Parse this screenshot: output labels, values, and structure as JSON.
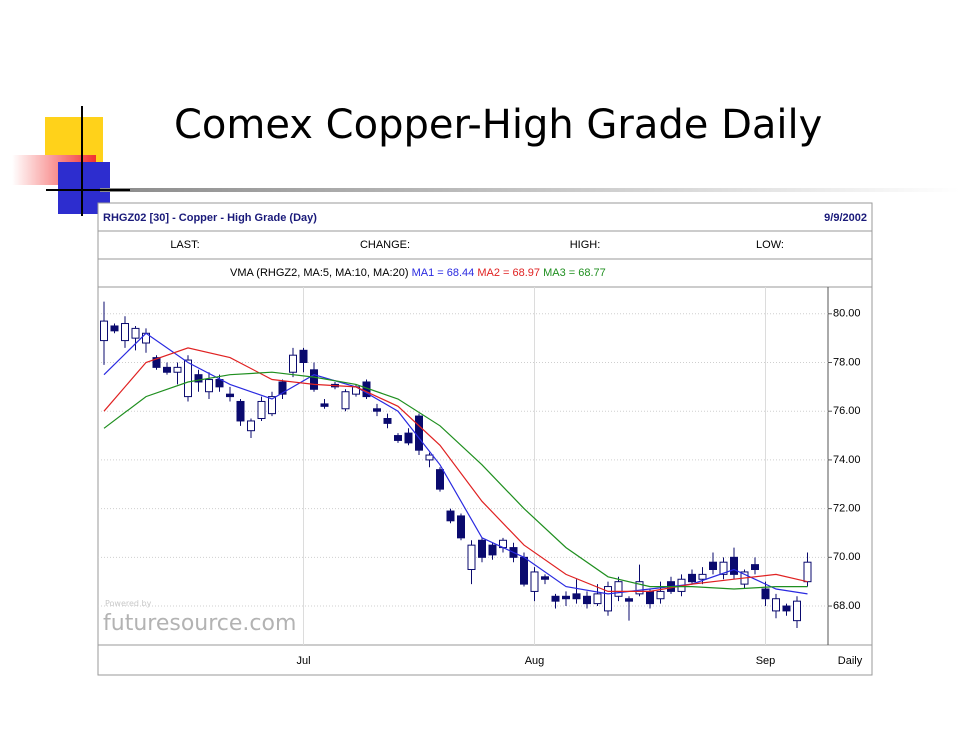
{
  "slide_title": "Comex Copper-High Grade Daily",
  "chart_data": {
    "type": "candlestick",
    "title": "RHGZ02 [30] - Copper - High Grade (Day)",
    "date": "9/9/2002",
    "fields": [
      "LAST:",
      "CHANGE:",
      "HIGH:",
      "LOW:"
    ],
    "ma_label": "VMA (RHGZ2, MA:5, MA:10, MA:20)",
    "watermark": [
      "Powered by",
      "futuresource.com"
    ],
    "x_label": "Daily",
    "up_color": "#ffffff",
    "down_color": "#0a0a6e",
    "edge_color": "#0a0a6e",
    "grid": true,
    "categories": [
      null,
      null,
      null,
      null,
      null,
      null,
      null,
      null,
      null,
      null,
      null,
      null,
      null,
      null,
      null,
      null,
      null,
      null,
      null,
      "Jul",
      null,
      null,
      null,
      null,
      null,
      null,
      null,
      null,
      null,
      null,
      null,
      null,
      null,
      null,
      null,
      null,
      null,
      null,
      null,
      null,
      null,
      "Aug",
      null,
      null,
      null,
      null,
      null,
      null,
      null,
      null,
      null,
      null,
      null,
      null,
      null,
      null,
      null,
      null,
      null,
      null,
      null,
      null,
      null,
      "Sep",
      null,
      null,
      null,
      null
    ],
    "open": [
      78.9,
      79.5,
      78.9,
      79.0,
      78.8,
      78.2,
      77.8,
      77.6,
      76.6,
      77.5,
      76.8,
      77.3,
      76.7,
      76.4,
      75.2,
      75.7,
      75.9,
      77.2,
      77.6,
      78.5,
      77.7,
      76.3,
      77.1,
      76.1,
      76.7,
      77.2,
      76.1,
      75.7,
      75.0,
      75.1,
      75.8,
      74.0,
      73.6,
      71.9,
      71.7,
      69.5,
      70.7,
      70.5,
      70.4,
      70.4,
      70.0,
      68.6,
      69.2,
      68.4,
      68.4,
      68.5,
      68.4,
      68.1,
      67.8,
      68.4,
      68.3,
      68.5,
      68.6,
      68.3,
      69.0,
      68.6,
      69.3,
      69.1,
      69.8,
      69.3,
      70.0,
      68.9,
      69.7,
      68.7,
      67.8,
      68.0,
      67.4,
      69.0
    ],
    "high": [
      80.5,
      79.6,
      79.9,
      79.5,
      79.4,
      78.3,
      78.0,
      78.0,
      78.3,
      77.7,
      77.6,
      77.5,
      77.0,
      76.5,
      75.7,
      76.6,
      76.8,
      77.3,
      78.6,
      78.6,
      78.0,
      76.5,
      77.2,
      76.9,
      77.1,
      77.3,
      76.3,
      75.9,
      75.1,
      75.3,
      75.9,
      74.3,
      73.7,
      72.0,
      71.8,
      70.7,
      70.8,
      70.6,
      70.8,
      70.6,
      70.2,
      69.6,
      69.3,
      68.5,
      68.6,
      69.1,
      68.6,
      68.9,
      69.0,
      69.2,
      68.4,
      69.7,
      68.7,
      69.0,
      69.2,
      69.3,
      69.5,
      69.6,
      70.2,
      70.0,
      70.4,
      69.5,
      70.0,
      69.0,
      68.5,
      68.1,
      68.4,
      70.2
    ],
    "low": [
      77.9,
      79.2,
      78.6,
      78.5,
      78.4,
      77.7,
      77.5,
      77.1,
      76.4,
      76.8,
      76.5,
      76.8,
      76.4,
      75.4,
      74.9,
      75.6,
      75.8,
      76.5,
      77.4,
      77.6,
      76.8,
      76.1,
      76.9,
      76.0,
      76.6,
      76.5,
      75.8,
      75.3,
      74.7,
      74.6,
      74.2,
      73.7,
      72.7,
      71.4,
      70.7,
      68.9,
      69.8,
      69.9,
      70.2,
      69.8,
      68.8,
      68.2,
      68.9,
      67.9,
      68.0,
      68.1,
      67.9,
      68.0,
      67.6,
      68.2,
      67.4,
      68.4,
      67.9,
      68.1,
      68.5,
      68.4,
      68.9,
      68.9,
      69.3,
      69.1,
      69.1,
      68.7,
      69.3,
      68.0,
      67.5,
      67.6,
      67.1,
      68.8
    ],
    "close": [
      79.7,
      79.3,
      79.6,
      79.4,
      79.2,
      77.8,
      77.6,
      77.8,
      78.1,
      77.2,
      77.3,
      77.0,
      76.6,
      75.6,
      75.6,
      76.4,
      76.6,
      76.7,
      78.3,
      78.0,
      76.9,
      76.2,
      77.0,
      76.8,
      77.0,
      76.6,
      76.0,
      75.5,
      74.8,
      74.7,
      74.4,
      74.2,
      72.8,
      71.5,
      70.8,
      70.5,
      70.0,
      70.1,
      70.7,
      70.0,
      68.9,
      69.4,
      69.1,
      68.2,
      68.3,
      68.3,
      68.1,
      68.5,
      68.8,
      69.0,
      68.2,
      69.0,
      68.1,
      68.6,
      68.6,
      69.1,
      69.0,
      69.3,
      69.5,
      69.8,
      69.3,
      69.4,
      69.5,
      68.3,
      68.3,
      67.8,
      68.2,
      69.8
    ],
    "series": [
      {
        "name": "MA1 = 68.44",
        "color": "#2a2ae0",
        "x": [
          0,
          4,
          8,
          12,
          16,
          20,
          24,
          28,
          32,
          36,
          40,
          44,
          48,
          52,
          56,
          60,
          64,
          67
        ],
        "values": [
          77.5,
          79.2,
          78.0,
          77.1,
          76.5,
          77.5,
          77.0,
          76.0,
          73.8,
          70.8,
          70.0,
          68.8,
          68.5,
          68.7,
          68.9,
          69.5,
          68.7,
          68.5
        ]
      },
      {
        "name": "MA2 = 68.97",
        "color": "#e02222",
        "x": [
          0,
          4,
          8,
          12,
          16,
          20,
          24,
          28,
          32,
          36,
          40,
          44,
          48,
          52,
          56,
          60,
          64,
          67
        ],
        "values": [
          76.0,
          78.0,
          78.6,
          78.2,
          77.3,
          77.1,
          77.0,
          76.2,
          74.6,
          72.3,
          70.5,
          69.3,
          68.6,
          68.6,
          68.9,
          69.1,
          69.3,
          69.0
        ]
      },
      {
        "name": "MA3 = 68.77",
        "color": "#1f8f1f",
        "x": [
          0,
          4,
          8,
          12,
          16,
          20,
          24,
          28,
          32,
          36,
          40,
          44,
          48,
          52,
          56,
          60,
          64,
          67
        ],
        "values": [
          75.3,
          76.6,
          77.2,
          77.5,
          77.6,
          77.4,
          77.1,
          76.5,
          75.4,
          73.8,
          72.0,
          70.4,
          69.2,
          68.8,
          68.8,
          68.7,
          68.8,
          68.8
        ]
      }
    ],
    "ylim": [
      66.4,
      81.1
    ],
    "yticks": [
      {
        "value": 68,
        "label": "68.00"
      },
      {
        "value": 70,
        "label": "70.00"
      },
      {
        "value": 72,
        "label": "72.00"
      },
      {
        "value": 74,
        "label": "74.00"
      },
      {
        "value": 76,
        "label": "76.00"
      },
      {
        "value": 78,
        "label": "78.00"
      },
      {
        "value": 80,
        "label": "80.00"
      }
    ]
  }
}
